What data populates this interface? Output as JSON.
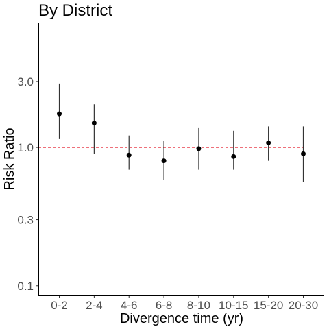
{
  "chart_data": {
    "type": "scatter",
    "title": "By District",
    "xlabel": "Divergence time (yr)",
    "ylabel": "Risk Ratio",
    "y_scale": "log",
    "ylim": [
      0.085,
      8.0
    ],
    "y_ticks": [
      0.1,
      0.3,
      1.0,
      3.0
    ],
    "y_tick_labels": [
      "0.1",
      "0.3",
      "1.0",
      "3.0"
    ],
    "categories": [
      "0-2",
      "2-4",
      "4-6",
      "6-8",
      "8-10",
      "10-15",
      "15-20",
      "20-30"
    ],
    "estimates": [
      1.75,
      1.5,
      0.88,
      0.8,
      0.98,
      0.86,
      1.08,
      0.9
    ],
    "lower": [
      1.15,
      0.9,
      0.69,
      0.58,
      0.69,
      0.69,
      0.8,
      0.56
    ],
    "upper": [
      2.9,
      2.05,
      1.22,
      1.12,
      1.38,
      1.32,
      1.42,
      1.42
    ],
    "reference_line": {
      "value": 1.0,
      "color": "#e8414e",
      "style": "dashed"
    },
    "point_color": "#000000",
    "errorbar_color": "#333333",
    "grid": false,
    "legend": "none"
  }
}
